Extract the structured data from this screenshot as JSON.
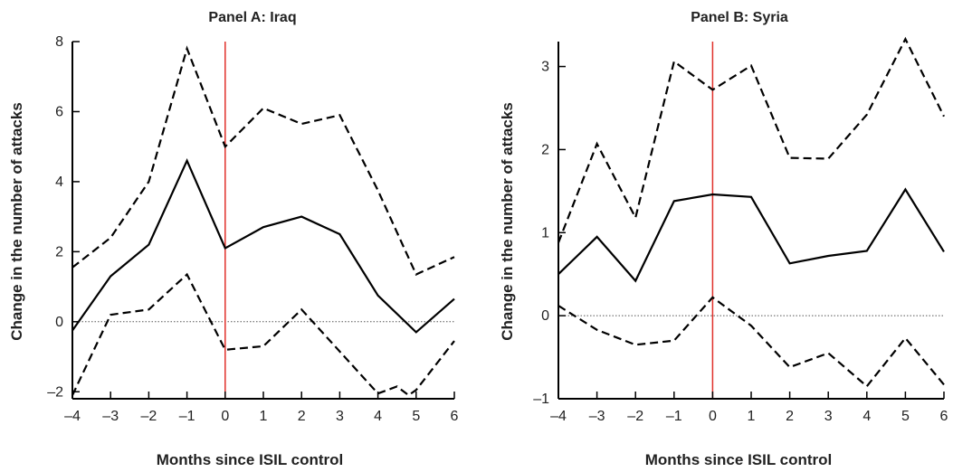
{
  "chart_data": [
    {
      "type": "line",
      "title": "Panel A: Iraq",
      "xlabel": "Months since ISIL control",
      "ylabel": "Change in the number of attacks",
      "xlim": [
        -4,
        6
      ],
      "ylim": [
        -2.2,
        8
      ],
      "xticks": [
        -4,
        -3,
        -2,
        -1,
        0,
        1,
        2,
        3,
        4,
        5,
        6
      ],
      "yticks": [
        -2,
        0,
        2,
        4,
        6,
        8
      ],
      "xtick_labels": [
        "–4",
        "–3",
        "–2",
        "–1",
        "0",
        "1",
        "2",
        "3",
        "4",
        "5",
        "6"
      ],
      "ytick_labels": [
        "–2",
        "0",
        "2",
        "4",
        "6",
        "8"
      ],
      "zero_line": true,
      "event_line_x": 0,
      "colors": {
        "event_line": "#e0302a",
        "series": "#000000"
      },
      "series": [
        {
          "role": "estimate",
          "style": "solid",
          "x": [
            -4,
            -3,
            -2,
            -1,
            0,
            1,
            2,
            3,
            4,
            5,
            6
          ],
          "values": [
            -0.25,
            1.3,
            2.2,
            4.6,
            2.1,
            2.7,
            3.0,
            2.5,
            0.75,
            -0.3,
            0.65
          ]
        },
        {
          "role": "upper-bound",
          "style": "dashed",
          "x": [
            -4,
            -3,
            -2,
            -1,
            0,
            1,
            2,
            3,
            4,
            5,
            6
          ],
          "values": [
            1.55,
            2.4,
            4.0,
            7.8,
            5.0,
            6.1,
            5.65,
            5.9,
            3.75,
            1.35,
            1.85
          ]
        },
        {
          "role": "lower-bound",
          "style": "dashed",
          "x": [
            -4,
            -3,
            -2,
            -1,
            0,
            1,
            2,
            3,
            4,
            4.5,
            4.8,
            5,
            6
          ],
          "values": [
            -2.1,
            0.2,
            0.35,
            1.35,
            -0.8,
            -0.7,
            0.35,
            -0.85,
            -2.05,
            -1.85,
            -2.1,
            -1.95,
            -0.55
          ]
        }
      ]
    },
    {
      "type": "line",
      "title": "Panel B: Syria",
      "xlabel": "Months since ISIL control",
      "ylabel": "Change in the number of attacks",
      "xlim": [
        -4,
        6
      ],
      "ylim": [
        -1,
        3.3
      ],
      "xticks": [
        -4,
        -3,
        -2,
        -1,
        0,
        1,
        2,
        3,
        4,
        5,
        6
      ],
      "yticks": [
        -1,
        0,
        1,
        2,
        3
      ],
      "xtick_labels": [
        "–4",
        "–3",
        "–2",
        "–1",
        "0",
        "1",
        "2",
        "3",
        "4",
        "5",
        "6"
      ],
      "ytick_labels": [
        "–1",
        "0",
        "1",
        "2",
        "3"
      ],
      "zero_line": true,
      "event_line_x": 0,
      "colors": {
        "event_line": "#e0302a",
        "series": "#000000"
      },
      "series": [
        {
          "role": "estimate",
          "style": "solid",
          "x": [
            -4,
            -3,
            -2,
            -1,
            0,
            1,
            2,
            3,
            4,
            5,
            6
          ],
          "values": [
            0.5,
            0.95,
            0.42,
            1.38,
            1.46,
            1.43,
            0.63,
            0.72,
            0.78,
            1.52,
            0.77
          ]
        },
        {
          "role": "upper-bound",
          "style": "dashed",
          "x": [
            -4,
            -3,
            -2,
            -1,
            0,
            1,
            2,
            3,
            4,
            5,
            6
          ],
          "values": [
            0.88,
            2.07,
            1.18,
            3.06,
            2.72,
            3.01,
            1.9,
            1.89,
            2.42,
            3.33,
            2.4
          ]
        },
        {
          "role": "lower-bound",
          "style": "dashed",
          "x": [
            -4,
            -3,
            -2,
            -1,
            0,
            1,
            2,
            3,
            4,
            5,
            6
          ],
          "values": [
            0.12,
            -0.17,
            -0.35,
            -0.3,
            0.22,
            -0.12,
            -0.62,
            -0.45,
            -0.85,
            -0.27,
            -0.83
          ]
        }
      ]
    }
  ]
}
